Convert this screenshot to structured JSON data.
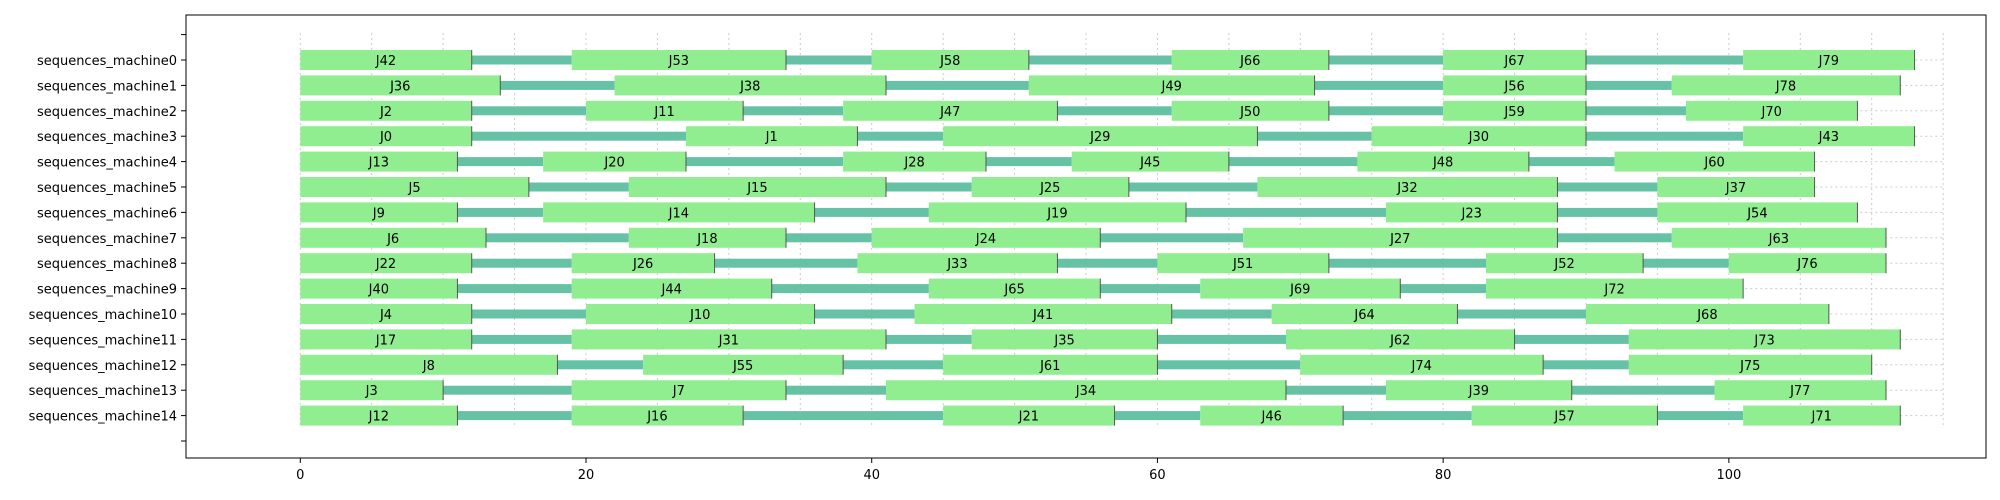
{
  "chart_data": {
    "type": "gantt",
    "xlim": [
      -8,
      118
    ],
    "xticks": [
      0,
      20,
      40,
      60,
      80,
      100
    ],
    "grid": true,
    "colors": {
      "job": "#90ee90",
      "idle": "#66c2a5",
      "grid": "#cccccc"
    },
    "machines": [
      {
        "name": "sequences_machine0",
        "jobs": [
          {
            "label": "J42",
            "start": 0,
            "end": 12
          },
          {
            "label": "J53",
            "start": 19,
            "end": 34
          },
          {
            "label": "J58",
            "start": 40,
            "end": 51
          },
          {
            "label": "J66",
            "start": 61,
            "end": 72
          },
          {
            "label": "J67",
            "start": 80,
            "end": 90
          },
          {
            "label": "J79",
            "start": 101,
            "end": 113
          }
        ]
      },
      {
        "name": "sequences_machine1",
        "jobs": [
          {
            "label": "J36",
            "start": 0,
            "end": 14
          },
          {
            "label": "J38",
            "start": 22,
            "end": 41
          },
          {
            "label": "J49",
            "start": 51,
            "end": 71
          },
          {
            "label": "J56",
            "start": 80,
            "end": 90
          },
          {
            "label": "J78",
            "start": 96,
            "end": 112
          }
        ]
      },
      {
        "name": "sequences_machine2",
        "jobs": [
          {
            "label": "J2",
            "start": 0,
            "end": 12
          },
          {
            "label": "J11",
            "start": 20,
            "end": 31
          },
          {
            "label": "J47",
            "start": 38,
            "end": 53
          },
          {
            "label": "J50",
            "start": 61,
            "end": 72
          },
          {
            "label": "J59",
            "start": 80,
            "end": 90
          },
          {
            "label": "J70",
            "start": 97,
            "end": 109
          }
        ]
      },
      {
        "name": "sequences_machine3",
        "jobs": [
          {
            "label": "J0",
            "start": 0,
            "end": 12
          },
          {
            "label": "J1",
            "start": 27,
            "end": 39
          },
          {
            "label": "J29",
            "start": 45,
            "end": 67
          },
          {
            "label": "J30",
            "start": 75,
            "end": 90
          },
          {
            "label": "J43",
            "start": 101,
            "end": 113
          }
        ]
      },
      {
        "name": "sequences_machine4",
        "jobs": [
          {
            "label": "J13",
            "start": 0,
            "end": 11
          },
          {
            "label": "J20",
            "start": 17,
            "end": 27
          },
          {
            "label": "J28",
            "start": 38,
            "end": 48
          },
          {
            "label": "J45",
            "start": 54,
            "end": 65
          },
          {
            "label": "J48",
            "start": 74,
            "end": 86
          },
          {
            "label": "J60",
            "start": 92,
            "end": 106
          }
        ]
      },
      {
        "name": "sequences_machine5",
        "jobs": [
          {
            "label": "J5",
            "start": 0,
            "end": 16
          },
          {
            "label": "J15",
            "start": 23,
            "end": 41
          },
          {
            "label": "J25",
            "start": 47,
            "end": 58
          },
          {
            "label": "J32",
            "start": 67,
            "end": 88
          },
          {
            "label": "J37",
            "start": 95,
            "end": 106
          }
        ]
      },
      {
        "name": "sequences_machine6",
        "jobs": [
          {
            "label": "J9",
            "start": 0,
            "end": 11
          },
          {
            "label": "J14",
            "start": 17,
            "end": 36
          },
          {
            "label": "J19",
            "start": 44,
            "end": 62
          },
          {
            "label": "J23",
            "start": 76,
            "end": 88
          },
          {
            "label": "J54",
            "start": 95,
            "end": 109
          }
        ]
      },
      {
        "name": "sequences_machine7",
        "jobs": [
          {
            "label": "J6",
            "start": 0,
            "end": 13
          },
          {
            "label": "J18",
            "start": 23,
            "end": 34
          },
          {
            "label": "J24",
            "start": 40,
            "end": 56
          },
          {
            "label": "J27",
            "start": 66,
            "end": 88
          },
          {
            "label": "J63",
            "start": 96,
            "end": 111
          }
        ]
      },
      {
        "name": "sequences_machine8",
        "jobs": [
          {
            "label": "J22",
            "start": 0,
            "end": 12
          },
          {
            "label": "J26",
            "start": 19,
            "end": 29
          },
          {
            "label": "J33",
            "start": 39,
            "end": 53
          },
          {
            "label": "J51",
            "start": 60,
            "end": 72
          },
          {
            "label": "J52",
            "start": 83,
            "end": 94
          },
          {
            "label": "J76",
            "start": 100,
            "end": 111
          }
        ]
      },
      {
        "name": "sequences_machine9",
        "jobs": [
          {
            "label": "J40",
            "start": 0,
            "end": 11
          },
          {
            "label": "J44",
            "start": 19,
            "end": 33
          },
          {
            "label": "J65",
            "start": 44,
            "end": 56
          },
          {
            "label": "J69",
            "start": 63,
            "end": 77
          },
          {
            "label": "J72",
            "start": 83,
            "end": 101
          }
        ]
      },
      {
        "name": "sequences_machine10",
        "jobs": [
          {
            "label": "J4",
            "start": 0,
            "end": 12
          },
          {
            "label": "J10",
            "start": 20,
            "end": 36
          },
          {
            "label": "J41",
            "start": 43,
            "end": 61
          },
          {
            "label": "J64",
            "start": 68,
            "end": 81
          },
          {
            "label": "J68",
            "start": 90,
            "end": 107
          }
        ]
      },
      {
        "name": "sequences_machine11",
        "jobs": [
          {
            "label": "J17",
            "start": 0,
            "end": 12
          },
          {
            "label": "J31",
            "start": 19,
            "end": 41
          },
          {
            "label": "J35",
            "start": 47,
            "end": 60
          },
          {
            "label": "J62",
            "start": 69,
            "end": 85
          },
          {
            "label": "J73",
            "start": 93,
            "end": 112
          }
        ]
      },
      {
        "name": "sequences_machine12",
        "jobs": [
          {
            "label": "J8",
            "start": 0,
            "end": 18
          },
          {
            "label": "J55",
            "start": 24,
            "end": 38
          },
          {
            "label": "J61",
            "start": 45,
            "end": 60
          },
          {
            "label": "J74",
            "start": 70,
            "end": 87
          },
          {
            "label": "J75",
            "start": 93,
            "end": 110
          }
        ]
      },
      {
        "name": "sequences_machine13",
        "jobs": [
          {
            "label": "J3",
            "start": 0,
            "end": 10
          },
          {
            "label": "J7",
            "start": 19,
            "end": 34
          },
          {
            "label": "J34",
            "start": 41,
            "end": 69
          },
          {
            "label": "J39",
            "start": 76,
            "end": 89
          },
          {
            "label": "J77",
            "start": 99,
            "end": 111
          }
        ]
      },
      {
        "name": "sequences_machine14",
        "jobs": [
          {
            "label": "J12",
            "start": 0,
            "end": 11
          },
          {
            "label": "J16",
            "start": 19,
            "end": 31
          },
          {
            "label": "J21",
            "start": 45,
            "end": 57
          },
          {
            "label": "J46",
            "start": 63,
            "end": 73
          },
          {
            "label": "J57",
            "start": 82,
            "end": 95
          },
          {
            "label": "J71",
            "start": 101,
            "end": 112
          }
        ]
      }
    ]
  }
}
